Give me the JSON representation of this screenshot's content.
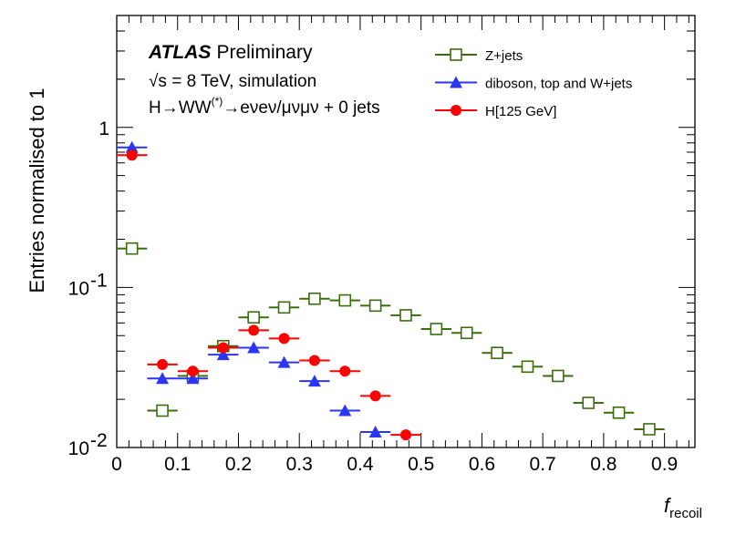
{
  "chart_data": {
    "type": "scatter",
    "title": "",
    "xlabel": {
      "main": "f",
      "sub": "recoil"
    },
    "ylabel": "Entries normalised to 1",
    "xlim": [
      0,
      0.95
    ],
    "ylim": [
      0.01,
      5
    ],
    "y_scale": "log",
    "grid": false,
    "legend_position": "top-right",
    "x_ticks": [
      "0",
      "0.1",
      "0.2",
      "0.3",
      "0.4",
      "0.5",
      "0.6",
      "0.7",
      "0.8",
      "0.9"
    ],
    "y_ticks": [
      {
        "base": "1",
        "exp": ""
      },
      {
        "base": "10",
        "exp": "-1"
      },
      {
        "base": "10",
        "exp": "-2"
      }
    ],
    "annotations": {
      "experiment": "ATLAS",
      "status": "Preliminary",
      "energy": "√s = 8 TeV, simulation",
      "process": "H→WW",
      "process_sup": "(*)",
      "process_rest": "→eνeν/μνμν + 0 jets"
    },
    "series": [
      {
        "name": "Z+jets",
        "color": "#3a6e0f",
        "marker": "open-square",
        "x": [
          0.025,
          0.075,
          0.125,
          0.175,
          0.225,
          0.275,
          0.325,
          0.375,
          0.425,
          0.475,
          0.525,
          0.575,
          0.625,
          0.675,
          0.725,
          0.775,
          0.825,
          0.875
        ],
        "y": [
          0.175,
          0.017,
          0.028,
          0.043,
          0.065,
          0.075,
          0.085,
          0.083,
          0.077,
          0.067,
          0.055,
          0.052,
          0.039,
          0.032,
          0.028,
          0.019,
          0.0165,
          0.013
        ]
      },
      {
        "name": "diboson, top and W+jets",
        "color": "#2b36f5",
        "marker": "filled-triangle",
        "x": [
          0.025,
          0.075,
          0.125,
          0.175,
          0.225,
          0.275,
          0.325,
          0.375,
          0.425
        ],
        "y": [
          0.75,
          0.027,
          0.027,
          0.038,
          0.042,
          0.034,
          0.026,
          0.017,
          0.0125
        ]
      },
      {
        "name": "H[125 GeV]",
        "color": "#ff0000",
        "marker": "filled-circle",
        "x": [
          0.025,
          0.075,
          0.125,
          0.175,
          0.225,
          0.275,
          0.325,
          0.375,
          0.425,
          0.475
        ],
        "y": [
          0.67,
          0.033,
          0.03,
          0.042,
          0.054,
          0.048,
          0.035,
          0.03,
          0.021,
          0.012
        ]
      }
    ]
  }
}
